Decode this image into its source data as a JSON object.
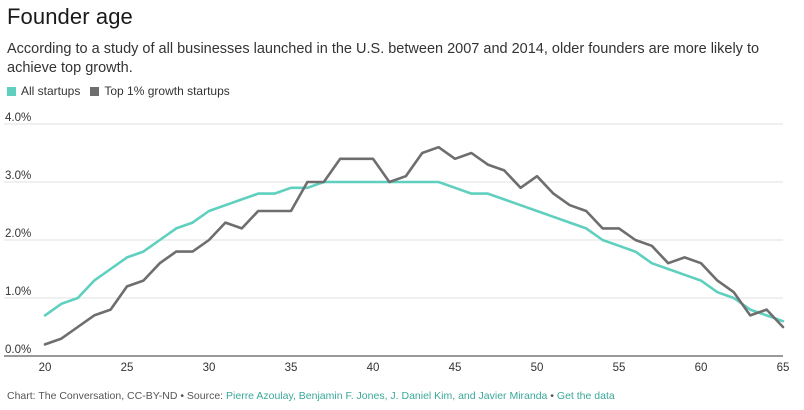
{
  "chart_data": {
    "type": "line",
    "title": "Founder age",
    "subtitle": "According to a study of all businesses launched in the U.S. between 2007 and 2014, older founders are more likely to achieve top growth.",
    "x": [
      20,
      21,
      22,
      23,
      24,
      25,
      26,
      27,
      28,
      29,
      30,
      31,
      32,
      33,
      34,
      35,
      36,
      37,
      38,
      39,
      40,
      41,
      42,
      43,
      44,
      45,
      46,
      47,
      48,
      49,
      50,
      51,
      52,
      53,
      54,
      55,
      56,
      57,
      58,
      59,
      60,
      61,
      62,
      63,
      64,
      65
    ],
    "series": [
      {
        "name": "All startups",
        "color": "#5fd0bf",
        "values": [
          0.7,
          0.9,
          1.0,
          1.3,
          1.5,
          1.7,
          1.8,
          2.0,
          2.2,
          2.3,
          2.5,
          2.6,
          2.7,
          2.8,
          2.8,
          2.9,
          2.9,
          3.0,
          3.0,
          3.0,
          3.0,
          3.0,
          3.0,
          3.0,
          3.0,
          2.9,
          2.8,
          2.8,
          2.7,
          2.6,
          2.5,
          2.4,
          2.3,
          2.2,
          2.0,
          1.9,
          1.8,
          1.6,
          1.5,
          1.4,
          1.3,
          1.1,
          1.0,
          0.8,
          0.7,
          0.6
        ]
      },
      {
        "name": "Top 1% growth startups",
        "color": "#6e6e6e",
        "values": [
          0.2,
          0.3,
          0.5,
          0.7,
          0.8,
          1.2,
          1.3,
          1.6,
          1.8,
          1.8,
          2.0,
          2.3,
          2.2,
          2.5,
          2.5,
          2.5,
          3.0,
          3.0,
          3.4,
          3.4,
          3.4,
          3.0,
          3.1,
          3.5,
          3.6,
          3.4,
          3.5,
          3.3,
          3.2,
          2.9,
          3.1,
          2.8,
          2.6,
          2.5,
          2.2,
          2.2,
          2.0,
          1.9,
          1.6,
          1.7,
          1.6,
          1.3,
          1.1,
          0.7,
          0.8,
          0.5
        ]
      }
    ],
    "xticks": [
      20,
      25,
      30,
      35,
      40,
      45,
      50,
      55,
      60,
      65
    ],
    "yticks": [
      "0.0%",
      "1.0%",
      "2.0%",
      "3.0%",
      "4.0%"
    ],
    "ylim": [
      0,
      4
    ],
    "xlim": [
      20,
      65
    ],
    "grid": "horizontal",
    "legend_position": "top-left"
  },
  "footer": {
    "prefix": "Chart: The Conversation, CC-BY-ND • Source: ",
    "source": "Pierre Azoulay, Benjamin F. Jones, J. Daniel Kim, and Javier Miranda",
    "separator": " • ",
    "get_data": "Get the data"
  }
}
